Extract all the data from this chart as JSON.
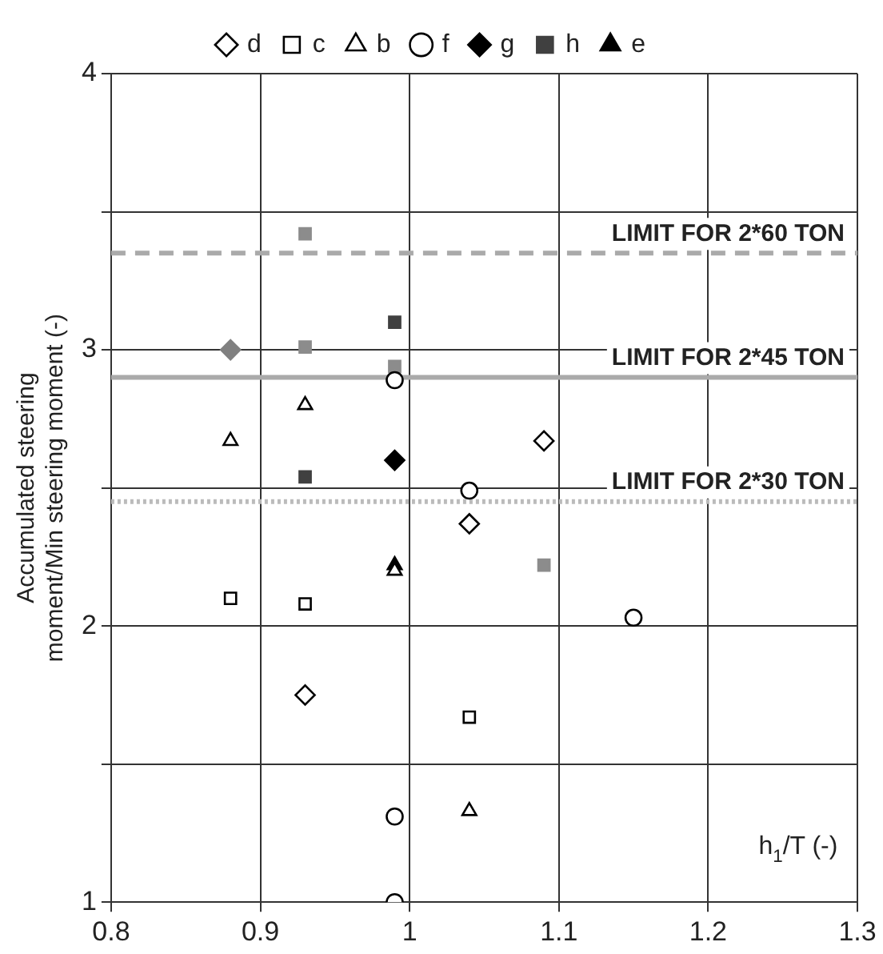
{
  "chart_data": {
    "type": "scatter",
    "xlabel": "h$_{1}$/T (-)",
    "ylabel": "Accumulated steering moment/Min steering moment (-)",
    "xlim": [
      0.8,
      1.3
    ],
    "xticks": [
      0.8,
      0.9,
      1,
      1.1,
      1.2,
      1.3
    ],
    "ylim": [
      1,
      4
    ],
    "yticks": [
      1,
      {
        "value": 1.5,
        "label": null
      },
      2,
      {
        "value": 2.5,
        "label": null
      },
      3,
      {
        "value": 3.5,
        "label": null
      },
      4
    ],
    "grid": true,
    "legend": "top",
    "series": [
      {
        "name": "d",
        "color": "#000000",
        "marker": "diamond",
        "x": [
          0.93,
          1.04,
          1.09
        ],
        "values": [
          1.75,
          2.37,
          2.67
        ]
      },
      {
        "name": "c",
        "color": "#000000",
        "marker": "square",
        "x": [
          0.88,
          0.93,
          1.04
        ],
        "values": [
          2.1,
          2.08,
          1.67
        ]
      },
      {
        "name": "b",
        "color": "#000000",
        "marker": "triangle",
        "x": [
          0.88,
          0.93,
          0.99,
          1.04
        ],
        "values": [
          2.67,
          2.8,
          2.2,
          1.33
        ]
      },
      {
        "name": "f",
        "color": "#000000",
        "marker": "circle",
        "x": [
          0.99,
          0.99,
          0.99,
          1.04,
          1.15
        ],
        "values": [
          1.0,
          1.31,
          2.89,
          2.49,
          2.03
        ]
      },
      {
        "name": "g",
        "color": "#000000",
        "colors": [
          "#000000",
          "#808080"
        ],
        "marker": "diamond",
        "x": [
          0.99,
          0.88
        ],
        "values": [
          2.6,
          3.0
        ]
      },
      {
        "name": "h",
        "color": "#404040",
        "colors": [
          "#404040",
          "#404040",
          "#8c8c8c",
          "#8c8c8c",
          "#8c8c8c",
          "#8c8c8c"
        ],
        "marker": "square",
        "x": [
          0.93,
          0.99,
          0.93,
          0.93,
          0.99,
          1.09
        ],
        "values": [
          2.54,
          3.1,
          3.42,
          3.01,
          2.94,
          2.22
        ]
      },
      {
        "name": "e",
        "color": "#000000",
        "colors": [
          "#000000"
        ],
        "marker": "triangle",
        "x": [
          0.99
        ],
        "values": [
          2.22
        ]
      }
    ],
    "ref_lines": [
      {
        "axis": "y",
        "value": 3.35,
        "label": "LIMIT FOR 2*60 TON",
        "color": "#aaaaaa",
        "line_style": "dashed"
      },
      {
        "axis": "y",
        "value": 2.9,
        "label": "LIMIT FOR 2*45 TON",
        "color": "#aaaaaa",
        "line_style": "solid"
      },
      {
        "axis": "y",
        "value": 2.45,
        "label": "LIMIT FOR 2*30 TON",
        "color": "#bbbbbb",
        "line_style": "dotted"
      }
    ]
  }
}
